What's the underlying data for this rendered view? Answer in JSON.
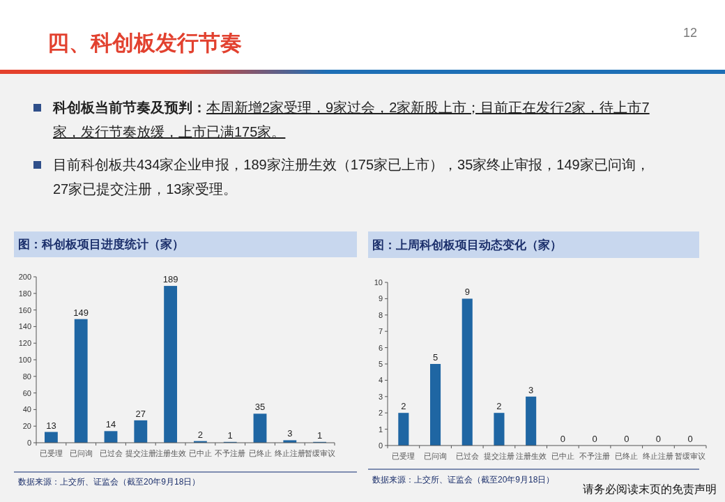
{
  "chart_data": [
    {
      "type": "other",
      "title": "四、科创板发行节奏",
      "annotations": [
        "科创板当前节奏及预判：",
        "本周新增2家受理，9家过会，2家新股上市；目前正在发行2家，待上市7家，发行节奏放缓，上市已满175家。",
        "目前科创板共434家企业申报，189家注册生效（175家已上市），35家终止审报，149家已问询，27家已提交注册，13家受理。",
        "请务必阅读末页的免责声明",
        "12"
      ]
    },
    {
      "type": "bar",
      "title": "图：科创板项目进度统计（家）",
      "categories": [
        "已受理",
        "已问询",
        "已过会",
        "提交注册",
        "注册生效",
        "已中止",
        "不予注册",
        "已终止",
        "终止注册",
        "暂缓审议"
      ],
      "values": [
        13,
        149,
        14,
        27,
        189,
        2,
        1,
        35,
        3,
        1
      ],
      "color": "#1f66a3",
      "ylim": [
        0,
        200
      ],
      "yticks": [
        0,
        20,
        40,
        60,
        80,
        100,
        120,
        140,
        160,
        180,
        200
      ],
      "data_labels": true,
      "annotations": [
        "数据来源：上交所、证监会（截至20年9月18日）"
      ]
    },
    {
      "type": "bar",
      "title": "图：上周科创板项目动态变化（家）",
      "categories": [
        "已受理",
        "已问询",
        "已过会",
        "提交注册",
        "注册生效",
        "已中止",
        "不予注册",
        "已终止",
        "终止注册",
        "暂缓审议"
      ],
      "values": [
        2,
        5,
        9,
        2,
        3,
        0,
        0,
        0,
        0,
        0
      ],
      "color": "#1f66a3",
      "ylim": [
        0,
        10
      ],
      "yticks": [
        0,
        1,
        2,
        3,
        4,
        5,
        6,
        7,
        8,
        9,
        10
      ],
      "data_labels": true,
      "annotations": [
        "数据来源：上交所、证监会（截至20年9月18日）"
      ]
    }
  ]
}
